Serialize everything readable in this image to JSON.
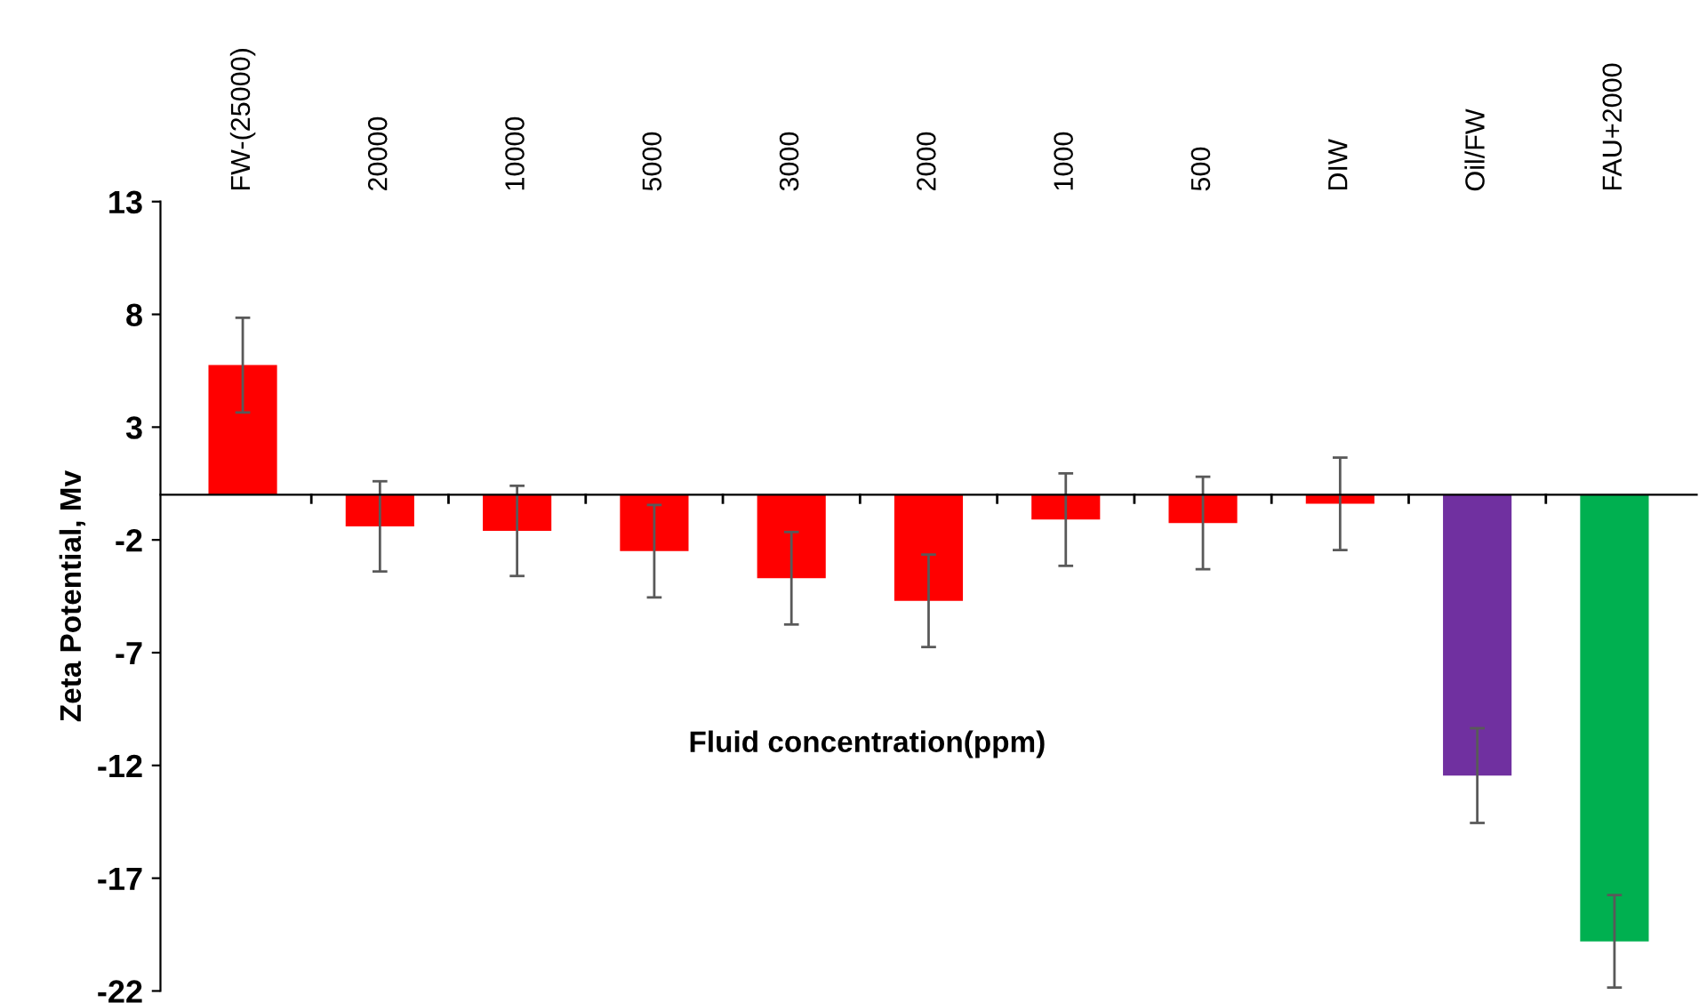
{
  "chart_data": {
    "type": "bar",
    "xlabel": "Fluid concentration(ppm)",
    "ylabel": "Zeta Potential, Mv",
    "categories": [
      "FW-(25000)",
      "20000",
      "10000",
      "5000",
      "3000",
      "2000",
      "1000",
      "500",
      "DIW",
      "Oil/FW",
      "FAU+2000"
    ],
    "values": [
      5.75,
      -1.4,
      -1.6,
      -2.5,
      -3.7,
      -4.7,
      -1.1,
      -1.25,
      -0.4,
      -12.45,
      -19.8
    ],
    "errors": [
      2.1,
      2.0,
      2.0,
      2.05,
      2.05,
      2.05,
      2.05,
      2.05,
      2.05,
      2.1,
      2.05
    ],
    "colors": [
      "#ff0000",
      "#ff0000",
      "#ff0000",
      "#ff0000",
      "#ff0000",
      "#ff0000",
      "#ff0000",
      "#ff0000",
      "#ff0000",
      "#7030a0",
      "#00b050"
    ],
    "ylim": [
      -22,
      13
    ],
    "yticks": [
      -22,
      -17,
      -12,
      -7,
      -2,
      3,
      8,
      13
    ],
    "grid": false,
    "legend": false
  }
}
